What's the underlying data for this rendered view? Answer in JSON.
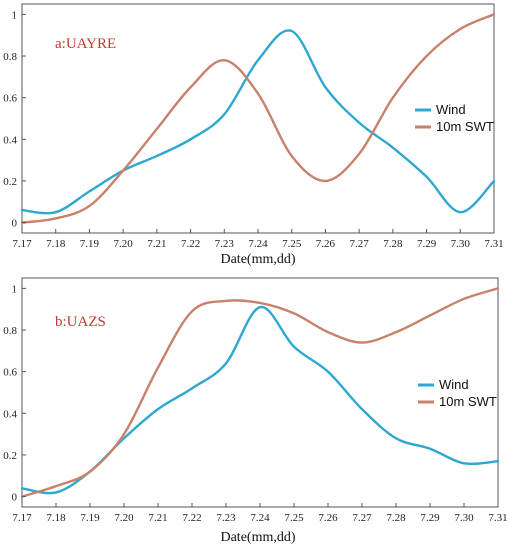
{
  "chart_data": [
    {
      "type": "line",
      "panel_label": "a:UAYRE",
      "xlabel": "Date(mm,dd)",
      "ylabel": "",
      "categories": [
        "7.17",
        "7.18",
        "7.19",
        "7.20",
        "7.21",
        "7.22",
        "7.23",
        "7.24",
        "7.25",
        "7.26",
        "7.27",
        "7.28",
        "7.29",
        "7.30",
        "7.31"
      ],
      "yticks": [
        "0",
        "0.2",
        "0.4",
        "0.6",
        "0.8",
        "1"
      ],
      "ylim": [
        -0.05,
        1.05
      ],
      "legend_position": "right",
      "series": [
        {
          "name": "Wind",
          "color": "#2ea8cf",
          "values": [
            0.06,
            0.05,
            0.15,
            0.25,
            0.32,
            0.4,
            0.52,
            0.78,
            0.92,
            0.65,
            0.48,
            0.36,
            0.22,
            0.05,
            0.2
          ]
        },
        {
          "name": "10m SWT",
          "color": "#c8816a",
          "values": [
            0.0,
            0.02,
            0.08,
            0.25,
            0.45,
            0.65,
            0.78,
            0.62,
            0.32,
            0.2,
            0.33,
            0.6,
            0.8,
            0.93,
            1.0
          ]
        }
      ]
    },
    {
      "type": "line",
      "panel_label": "b:UAZS",
      "xlabel": "Date(mm,dd)",
      "ylabel": "",
      "categories": [
        "7.17",
        "7.18",
        "7.19",
        "7.20",
        "7.21",
        "7.22",
        "7.23",
        "7.24",
        "7.25",
        "7.26",
        "7.27",
        "7.28",
        "7.29",
        "7.30",
        "7.31"
      ],
      "yticks": [
        "0",
        "0.2",
        "0.4",
        "0.6",
        "0.8",
        "1"
      ],
      "ylim": [
        -0.05,
        1.05
      ],
      "legend_position": "right",
      "series": [
        {
          "name": "Wind",
          "color": "#2ea8cf",
          "values": [
            0.04,
            0.02,
            0.12,
            0.28,
            0.42,
            0.52,
            0.64,
            0.91,
            0.72,
            0.6,
            0.42,
            0.28,
            0.23,
            0.16,
            0.17
          ]
        },
        {
          "name": "10m SWT",
          "color": "#c8816a",
          "values": [
            0.0,
            0.05,
            0.12,
            0.3,
            0.62,
            0.89,
            0.94,
            0.93,
            0.88,
            0.79,
            0.74,
            0.79,
            0.87,
            0.95,
            1.0
          ]
        }
      ]
    }
  ],
  "colors": {
    "panel_label": "#c0392b",
    "axis": "#555555"
  }
}
